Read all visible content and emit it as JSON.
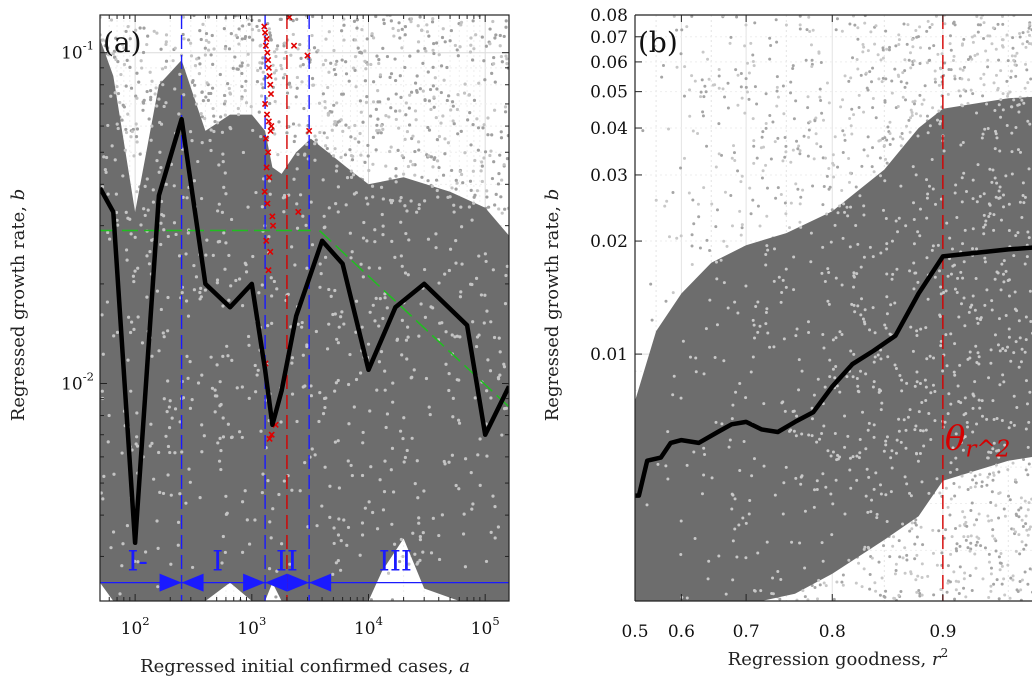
{
  "chart_data": [
    {
      "panel_label": "(a)",
      "type": "line",
      "xlabel": "Regressed initial confirmed cases, a",
      "ylabel": "Regressed growth rate, b",
      "xscale": "log",
      "yscale": "log",
      "xlim": [
        50,
        160000
      ],
      "ylim": [
        0.0022,
        0.13
      ],
      "x_tick_values": [
        100,
        1000,
        10000,
        100000
      ],
      "x_ticks": [
        "10^2",
        "10^3",
        "10^4",
        "10^5"
      ],
      "y_tick_values": [
        0.1,
        0.01
      ],
      "y_ticks": [
        "10^-1",
        "10^-2"
      ],
      "grid": true,
      "median_line": {
        "x": [
          50,
          65,
          100,
          160,
          250,
          400,
          650,
          1000,
          1300,
          1500,
          1800,
          2400,
          4000,
          6000,
          10000,
          17000,
          30000,
          70000,
          100000,
          160000
        ],
        "y": [
          0.039,
          0.033,
          0.0033,
          0.037,
          0.063,
          0.02,
          0.017,
          0.02,
          0.011,
          0.0075,
          0.0095,
          0.016,
          0.027,
          0.023,
          0.011,
          0.017,
          0.02,
          0.015,
          0.007,
          0.0098
        ]
      },
      "band_upper": {
        "x": [
          50,
          65,
          100,
          160,
          250,
          400,
          650,
          1000,
          1300,
          1500,
          1800,
          2400,
          3200,
          4500,
          6500,
          10000,
          20000,
          50000,
          100000,
          160000
        ],
        "y": [
          0.11,
          0.085,
          0.033,
          0.08,
          0.095,
          0.058,
          0.065,
          0.065,
          0.058,
          0.045,
          0.043,
          0.05,
          0.055,
          0.05,
          0.045,
          0.04,
          0.042,
          0.038,
          0.034,
          0.028
        ]
      },
      "band_lower": {
        "x": [
          50,
          65,
          100,
          160,
          250,
          400,
          650,
          1000,
          1300,
          1500,
          1800,
          2400,
          4000,
          6000,
          10000,
          13000,
          20000,
          30000,
          60000,
          100000,
          160000
        ],
        "y": [
          0.0025,
          0.0022,
          0.0022,
          0.0022,
          0.0022,
          0.0022,
          0.0025,
          0.0022,
          0.0022,
          0.0025,
          0.0022,
          0.0022,
          0.0022,
          0.0022,
          0.0022,
          0.0027,
          0.0034,
          0.0024,
          0.0022,
          0.0022,
          0.0022
        ]
      },
      "red_points": {
        "x": [
          1280,
          1300,
          1320,
          1340,
          1360,
          1380,
          1400,
          1420,
          1440,
          1460,
          1300,
          1350,
          1400,
          1450,
          1320,
          1380,
          1340,
          1410,
          1290,
          1360,
          1500,
          1520,
          1330,
          1440,
          1390,
          1470,
          2100,
          2300,
          3000,
          3100,
          2500,
          1310,
          1600,
          1480,
          1420
        ],
        "y": [
          0.12,
          0.115,
          0.105,
          0.11,
          0.1,
          0.095,
          0.09,
          0.085,
          0.08,
          0.075,
          0.07,
          0.065,
          0.062,
          0.058,
          0.055,
          0.05,
          0.045,
          0.042,
          0.038,
          0.035,
          0.032,
          0.03,
          0.027,
          0.025,
          0.022,
          0.06,
          0.128,
          0.105,
          0.098,
          0.058,
          0.033,
          0.0115,
          0.0075,
          0.007,
          0.0068
        ]
      },
      "green_dash_lines": [
        {
          "x": [
            50,
            3200
          ],
          "y": [
            0.029,
            0.029
          ]
        },
        {
          "x": [
            3800,
            160000
          ],
          "y": [
            0.029,
            0.0085
          ]
        }
      ],
      "blue_vlines_x": [
        250,
        1300,
        3100
      ],
      "red_vline_x": 2000,
      "phase_arrow_y": 0.0025,
      "phase_labels": [
        "I-",
        "I",
        "II",
        "III"
      ],
      "phase_label_x": [
        105,
        510,
        2000,
        17000
      ]
    },
    {
      "panel_label": "(b)",
      "type": "line",
      "xlabel": "Regression goodness, r^2",
      "ylabel": "Regressed growth rate, b",
      "xscale": "power",
      "yscale": "log",
      "xlim": [
        0.5,
        1.0
      ],
      "ylim": [
        0.0022,
        0.08
      ],
      "x_tick_values": [
        0.5,
        0.6,
        0.7,
        0.8,
        0.9
      ],
      "x_ticks": [
        "0.5",
        "0.6",
        "0.7",
        "0.8",
        "0.9"
      ],
      "y_tick_values": [
        0.08,
        0.07,
        0.06,
        0.05,
        0.04,
        0.03,
        0.02,
        0.01
      ],
      "y_ticks": [
        "0.08",
        "0.07",
        "0.06",
        "0.05",
        "0.04",
        "0.03",
        "0.02",
        "0.01"
      ],
      "grid": true,
      "median_line": {
        "x": [
          0.5,
          0.51,
          0.53,
          0.56,
          0.58,
          0.6,
          0.63,
          0.66,
          0.68,
          0.7,
          0.72,
          0.74,
          0.76,
          0.78,
          0.8,
          0.82,
          0.84,
          0.86,
          0.88,
          0.9,
          0.95,
          0.99
        ],
        "y": [
          0.0042,
          0.0042,
          0.0052,
          0.0053,
          0.0058,
          0.0059,
          0.0058,
          0.0062,
          0.0065,
          0.0066,
          0.0063,
          0.0062,
          0.0066,
          0.007,
          0.0082,
          0.0094,
          0.0102,
          0.0112,
          0.0145,
          0.0182,
          0.019,
          0.0195
        ]
      },
      "band_upper": {
        "x": [
          0.5,
          0.55,
          0.6,
          0.65,
          0.7,
          0.75,
          0.8,
          0.85,
          0.88,
          0.9,
          0.95,
          0.99
        ],
        "y": [
          0.0075,
          0.0115,
          0.0145,
          0.0175,
          0.0195,
          0.021,
          0.024,
          0.031,
          0.04,
          0.045,
          0.048,
          0.049
        ]
      },
      "band_lower": {
        "x": [
          0.5,
          0.53,
          0.58,
          0.6,
          0.64,
          0.68,
          0.72,
          0.76,
          0.8,
          0.85,
          0.88,
          0.9,
          0.95,
          0.99
        ],
        "y": [
          0.0022,
          0.0022,
          0.0022,
          0.0022,
          0.0022,
          0.0022,
          0.0022,
          0.0023,
          0.0026,
          0.0032,
          0.0037,
          0.0046,
          0.0052,
          0.0055
        ]
      },
      "red_vline_x": 0.9,
      "threshold_label": "θ_{r^2}"
    }
  ]
}
